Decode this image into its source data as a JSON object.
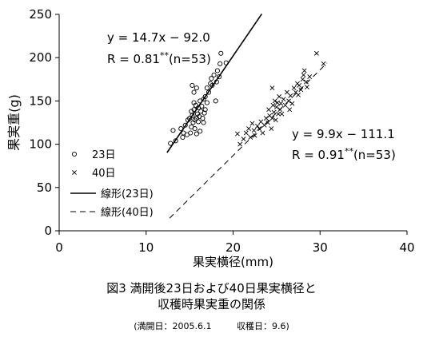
{
  "chart_data": {
    "type": "scatter",
    "xlabel": "果実横径(mm)",
    "ylabel": "果実重(g)",
    "xlim": [
      0,
      40
    ],
    "ylim": [
      0,
      250
    ],
    "x_ticks": [
      "0",
      "10",
      "20",
      "30",
      "40"
    ],
    "y_ticks": [
      "0",
      "50",
      "100",
      "150",
      "200",
      "250"
    ],
    "grid": false,
    "legend_position": "lower-left",
    "series": [
      {
        "name": "23日",
        "marker": "circle",
        "points": [
          [
            12.8,
            101
          ],
          [
            13.4,
            104
          ],
          [
            13.1,
            116
          ],
          [
            14.0,
            118
          ],
          [
            14.2,
            108
          ],
          [
            14.5,
            122
          ],
          [
            14.7,
            111
          ],
          [
            14.8,
            128
          ],
          [
            15.0,
            130
          ],
          [
            15.1,
            113
          ],
          [
            15.2,
            120
          ],
          [
            15.2,
            138
          ],
          [
            15.3,
            133
          ],
          [
            15.4,
            125
          ],
          [
            15.5,
            140
          ],
          [
            15.5,
            148
          ],
          [
            15.6,
            118
          ],
          [
            15.6,
            128
          ],
          [
            15.7,
            145
          ],
          [
            15.8,
            112
          ],
          [
            15.8,
            130
          ],
          [
            15.9,
            135
          ],
          [
            16.0,
            126
          ],
          [
            16.0,
            142
          ],
          [
            16.1,
            132
          ],
          [
            16.2,
            150
          ],
          [
            16.2,
            115
          ],
          [
            16.3,
            138
          ],
          [
            16.4,
            144
          ],
          [
            16.5,
            130
          ],
          [
            16.6,
            125
          ],
          [
            16.6,
            152
          ],
          [
            16.7,
            136
          ],
          [
            16.8,
            140
          ],
          [
            15.3,
            168
          ],
          [
            15.5,
            160
          ],
          [
            15.8,
            165
          ],
          [
            16.8,
            155
          ],
          [
            17.0,
            165
          ],
          [
            17.2,
            160
          ],
          [
            17.4,
            170
          ],
          [
            17.5,
            176
          ],
          [
            17.6,
            168
          ],
          [
            17.8,
            180
          ],
          [
            18.0,
            150
          ],
          [
            18.1,
            172
          ],
          [
            18.2,
            185
          ],
          [
            18.4,
            178
          ],
          [
            18.5,
            193
          ],
          [
            18.6,
            205
          ],
          [
            19.2,
            194
          ],
          [
            17.0,
            148
          ],
          [
            14.3,
            113
          ]
        ]
      },
      {
        "name": "40日",
        "marker": "x",
        "points": [
          [
            20.5,
            112
          ],
          [
            20.8,
            100
          ],
          [
            21.2,
            106
          ],
          [
            21.5,
            113
          ],
          [
            21.8,
            118
          ],
          [
            22.0,
            108
          ],
          [
            22.2,
            124
          ],
          [
            22.4,
            116
          ],
          [
            22.5,
            110
          ],
          [
            22.8,
            121
          ],
          [
            23.0,
            118
          ],
          [
            23.2,
            126
          ],
          [
            23.4,
            113
          ],
          [
            23.6,
            122
          ],
          [
            23.8,
            130
          ],
          [
            24.0,
            125
          ],
          [
            24.1,
            140
          ],
          [
            24.2,
            133
          ],
          [
            24.4,
            118
          ],
          [
            24.5,
            130
          ],
          [
            24.6,
            145
          ],
          [
            24.7,
            137
          ],
          [
            24.8,
            150
          ],
          [
            24.9,
            128
          ],
          [
            25.0,
            143
          ],
          [
            25.1,
            148
          ],
          [
            25.2,
            135
          ],
          [
            25.3,
            155
          ],
          [
            25.4,
            140
          ],
          [
            25.5,
            147
          ],
          [
            25.6,
            135
          ],
          [
            25.8,
            152
          ],
          [
            26.0,
            145
          ],
          [
            26.2,
            160
          ],
          [
            26.4,
            150
          ],
          [
            26.5,
            140
          ],
          [
            26.6,
            156
          ],
          [
            26.8,
            147
          ],
          [
            27.0,
            165
          ],
          [
            27.2,
            160
          ],
          [
            27.4,
            170
          ],
          [
            27.5,
            157
          ],
          [
            27.6,
            168
          ],
          [
            27.8,
            163
          ],
          [
            28.0,
            175
          ],
          [
            28.1,
            180
          ],
          [
            28.2,
            185
          ],
          [
            28.4,
            172
          ],
          [
            28.5,
            166
          ],
          [
            28.8,
            178
          ],
          [
            29.6,
            205
          ],
          [
            30.4,
            193
          ],
          [
            24.5,
            165
          ]
        ]
      }
    ],
    "fits": [
      {
        "name": "線形(23日)",
        "style": "solid",
        "slope": 14.7,
        "intercept": -92.0,
        "x_range": [
          12.4,
          23.3
        ],
        "equation": "y = 14.7x − 92.0",
        "r_label": "R = 0.81",
        "r_stars": "**",
        "r_n": "(n=53)"
      },
      {
        "name": "線形(40日)",
        "style": "dashed",
        "slope": 9.9,
        "intercept": -111.1,
        "x_range": [
          12.7,
          30.8
        ],
        "equation": "y = 9.9x − 111.1",
        "r_label": "R = 0.91",
        "r_stars": "**",
        "r_n": "(n=53)"
      }
    ]
  },
  "caption": {
    "line1": "図3 満開後23日および40日果実横径と",
    "line2": "収穫時果実重の関係",
    "note_bloom": "(満開日：2005.6.1",
    "note_harvest": "収穫日：9.6)"
  }
}
